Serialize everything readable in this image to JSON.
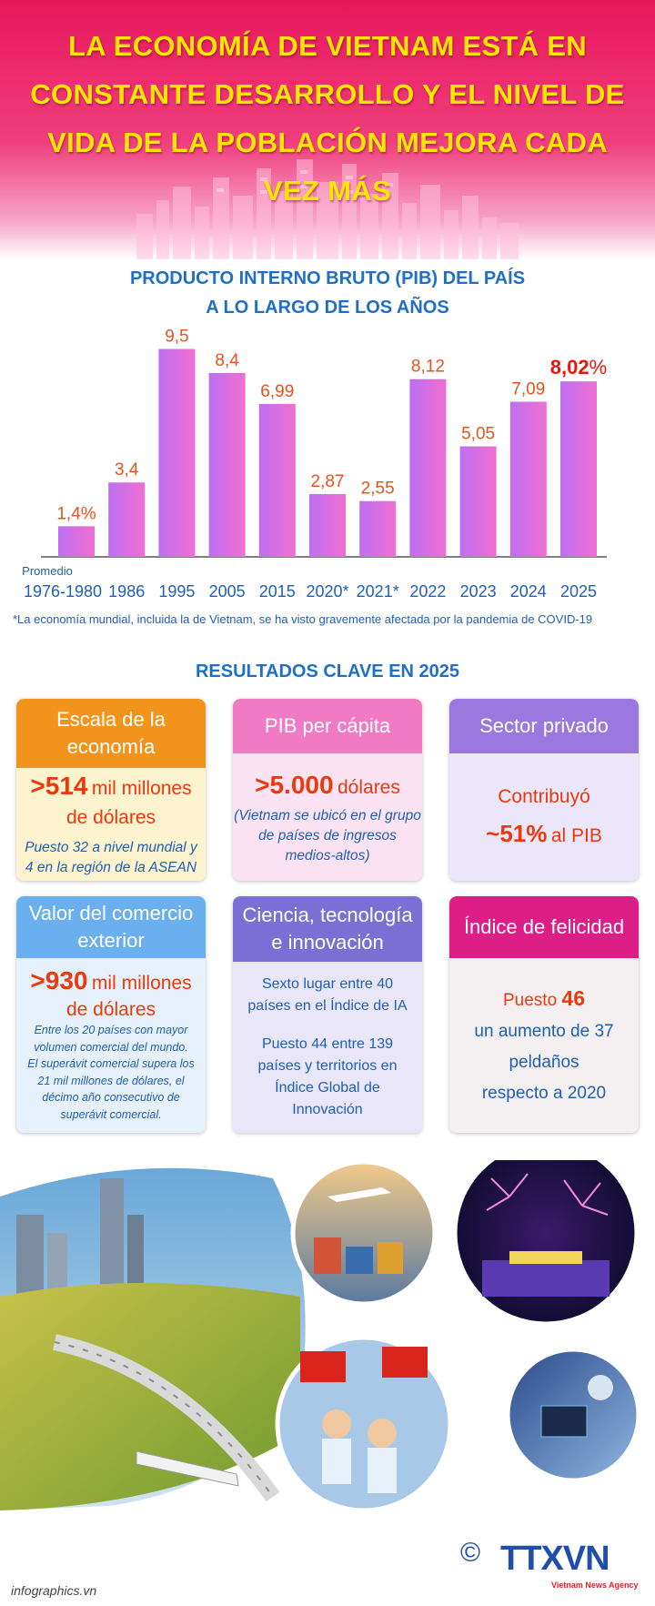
{
  "header": {
    "title": "LA ECONOMÍA DE VIETNAM ESTÁ EN CONSTANTE DESARROLLO Y EL NIVEL DE VIDA DE LA POBLACIÓN MEJORA CADA VEZ MÁS"
  },
  "chart": {
    "title_line1": "PRODUCTO INTERNO BRUTO (PIB) DEL PAÍS",
    "title_line2": "A LO LARGO DE LOS AÑOS",
    "footnote": "*La economía mundial, incluida la de Vietnam, se ha visto gravemente afectada por la pandemia de COVID-19"
  },
  "chart_data": {
    "type": "bar",
    "categories": [
      "1976-1980",
      "1986",
      "1995",
      "2005",
      "2015",
      "2020*",
      "2021*",
      "2022",
      "2023",
      "2024",
      "2025"
    ],
    "category_prefix": {
      "0": "Promedio"
    },
    "values": [
      1.4,
      3.4,
      9.5,
      8.4,
      6.99,
      2.87,
      2.55,
      8.12,
      5.05,
      7.09,
      8.02
    ],
    "value_labels": [
      "1,4%",
      "3,4",
      "9,5",
      "8,4",
      "6,99",
      "2,87",
      "2,55",
      "8,12",
      "5,05",
      "7,09",
      "8,02"
    ],
    "highlight_last_suffix": "%",
    "ylim": [
      0,
      10
    ],
    "bar_color_top": "#bd6ff2",
    "bar_color_bottom": "#f06fd0",
    "label_color": "#e8521e",
    "highlight_color": "#e8170d",
    "grid": false
  },
  "results": {
    "title": "RESULTADOS CLAVE EN 2025",
    "cards": {
      "escala": {
        "head": "Escala de la economía",
        "big": ">514",
        "big_rest_1": "mil millones",
        "big_rest_2": "de dólares",
        "note_1": "Puesto 32 a nivel mundial y",
        "note_2": "4 en la región de la ASEAN",
        "color": "#f2941b"
      },
      "pib": {
        "head": "PIB per cápita",
        "big": ">5.000",
        "big_rest": "dólares",
        "note_1": "(Vietnam se ubicó en el grupo",
        "note_2": "de países de ingresos",
        "note_3": "medios-altos)",
        "color": "#f07ac4"
      },
      "privado": {
        "head": "Sector privado",
        "line1": "Contribuyó",
        "big": "~51%",
        "rest": "al PIB",
        "color": "#9a78e0"
      },
      "comercio": {
        "head_1": "Valor del comercio",
        "head_2": "exterior",
        "big": ">930",
        "big_rest_1": "mil millones",
        "big_rest_2": "de dólares",
        "notes": [
          "Entre los 20 países con mayor",
          "volumen comercial del mundo.",
          "El superávit comercial supera los",
          "21 mil millones de dólares, el",
          "décimo año consecutivo de",
          "superávit comercial."
        ],
        "color": "#6ab0ee"
      },
      "ciencia": {
        "head_1": "Ciencia, tecnología",
        "head_2": "e innovación",
        "para1": [
          "Sexto lugar entre 40",
          "países en el Índice de IA"
        ],
        "para2": [
          "Puesto 44 entre 139",
          "países y territorios en",
          "Índice Global de",
          "Innovación"
        ],
        "color": "#7b6fd6"
      },
      "felicidad": {
        "head": "Índice de felicidad",
        "line1a": "Puesto",
        "line1b": "46",
        "lines": [
          "un aumento de 37",
          "peldaños",
          "respecto a 2020"
        ],
        "color": "#dc1e86"
      }
    }
  },
  "footer": {
    "site": "infographics.vn",
    "copyright": "©",
    "logo": "TTXVN",
    "logo_sub": "Vietnam News Agency"
  }
}
